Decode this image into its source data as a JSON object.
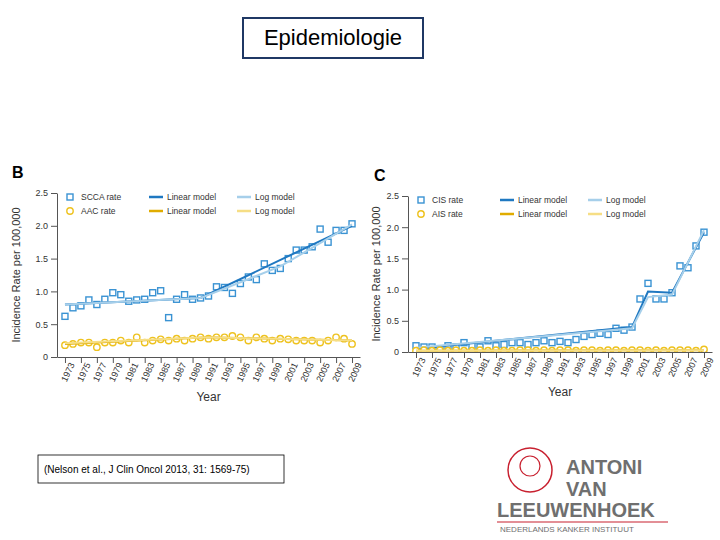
{
  "slide_title": "Epidemiologie",
  "citation": "(Nelson et al., J Clin Oncol 2013, 31: 1569-75)",
  "logo": [
    "ANTONI",
    "VAN",
    "LEEUWENHOEK",
    "NEDERLANDS KANKER INSTITUUT"
  ],
  "chart_data": [
    {
      "type": "scatter",
      "title": "B",
      "x_label": "Year",
      "y_label": "Incidence Rate per 100,000",
      "x": [
        1973,
        1974,
        1975,
        1976,
        1977,
        1978,
        1979,
        1980,
        1981,
        1982,
        1983,
        1984,
        1985,
        1986,
        1987,
        1988,
        1989,
        1990,
        1991,
        1992,
        1993,
        1994,
        1995,
        1996,
        1997,
        1998,
        1999,
        2000,
        2001,
        2002,
        2003,
        2004,
        2005,
        2006,
        2007,
        2008,
        2009
      ],
      "xlim": [
        1972,
        2010
      ],
      "xticks": [
        1973,
        1975,
        1977,
        1979,
        1981,
        1983,
        1985,
        1987,
        1989,
        1991,
        1993,
        1995,
        1997,
        1999,
        2001,
        2003,
        2005,
        2007,
        2009
      ],
      "ylim": [
        0,
        2.5
      ],
      "yticks": [
        0,
        0.5,
        {
          "value": 1,
          "label": "1.0"
        },
        1.5,
        {
          "value": 2,
          "label": "2.0"
        },
        2.5
      ],
      "grid": false,
      "legend": "top",
      "series": [
        {
          "name": "SCCA rate",
          "type": "scatter",
          "marker": "square",
          "color": "#3a93d3",
          "values": [
            0.62,
            0.75,
            0.78,
            0.87,
            0.8,
            0.88,
            0.98,
            0.95,
            0.85,
            0.87,
            0.88,
            0.98,
            1.01,
            0.6,
            0.88,
            0.95,
            0.88,
            0.9,
            0.93,
            1.07,
            1.06,
            0.97,
            1.12,
            1.22,
            1.18,
            1.42,
            1.32,
            1.35,
            1.5,
            1.63,
            1.63,
            1.68,
            1.95,
            1.75,
            1.93,
            1.93,
            2.03
          ]
        },
        {
          "name": "Linear model",
          "type": "line",
          "line_style": "solid",
          "color": "#1f78c1",
          "x": [
            1973,
            1990,
            2009
          ],
          "values": [
            0.8,
            0.9,
            2.0
          ]
        },
        {
          "name": "Log model",
          "type": "line",
          "line_style": "solid",
          "color": "#a6cfea",
          "x": [
            1973,
            1990,
            2000,
            2009
          ],
          "values": [
            0.8,
            0.9,
            1.38,
            2.02
          ]
        },
        {
          "name": "AAC rate",
          "type": "scatter",
          "marker": "circle",
          "color": "#eec21e",
          "values": [
            0.18,
            0.2,
            0.22,
            0.22,
            0.15,
            0.22,
            0.22,
            0.25,
            0.22,
            0.3,
            0.22,
            0.25,
            0.27,
            0.25,
            0.28,
            0.25,
            0.28,
            0.3,
            0.28,
            0.3,
            0.3,
            0.32,
            0.3,
            0.25,
            0.3,
            0.28,
            0.25,
            0.28,
            0.27,
            0.25,
            0.25,
            0.25,
            0.22,
            0.25,
            0.3,
            0.28,
            0.2
          ]
        },
        {
          "name": "Linear model",
          "type": "line",
          "line_style": "solid",
          "color": "#e0ac00",
          "x": [
            1973,
            1991,
            2009
          ],
          "values": [
            0.2,
            0.3,
            0.25
          ]
        },
        {
          "name": "Log model",
          "type": "line",
          "line_style": "solid",
          "color": "#f6de85",
          "x": [
            1973,
            1991,
            2009
          ],
          "values": [
            0.21,
            0.3,
            0.25
          ]
        }
      ]
    },
    {
      "type": "scatter",
      "title": "C",
      "x_label": "Year",
      "y_label": "Incidence Rate per 100,000",
      "x": [
        1973,
        1974,
        1975,
        1976,
        1977,
        1978,
        1979,
        1980,
        1981,
        1982,
        1983,
        1984,
        1985,
        1986,
        1987,
        1988,
        1989,
        1990,
        1991,
        1992,
        1993,
        1994,
        1995,
        1996,
        1997,
        1998,
        1999,
        2000,
        2001,
        2002,
        2003,
        2004,
        2005,
        2006,
        2007,
        2008,
        2009
      ],
      "xlim": [
        1972,
        2010
      ],
      "xticks": [
        1973,
        1975,
        1977,
        1979,
        1981,
        1983,
        1985,
        1987,
        1989,
        1991,
        1993,
        1995,
        1997,
        1999,
        2001,
        2003,
        2005,
        2007,
        2009
      ],
      "ylim": [
        0,
        2.5
      ],
      "yticks": [
        0,
        0.5,
        {
          "value": 1,
          "label": "1.0"
        },
        1.5,
        {
          "value": 2,
          "label": "2.0"
        },
        2.5
      ],
      "grid": false,
      "legend": "top",
      "series": [
        {
          "name": "CIS rate",
          "type": "scatter",
          "marker": "square",
          "color": "#3a93d3",
          "values": [
            0.1,
            0.08,
            0.08,
            0.05,
            0.1,
            0.08,
            0.15,
            0.1,
            0.08,
            0.18,
            0.1,
            0.12,
            0.15,
            0.15,
            0.12,
            0.15,
            0.18,
            0.15,
            0.17,
            0.15,
            0.2,
            0.25,
            0.28,
            0.3,
            0.28,
            0.38,
            0.35,
            0.4,
            0.85,
            1.1,
            0.85,
            0.85,
            0.95,
            1.38,
            1.35,
            1.7,
            1.92
          ]
        },
        {
          "name": "Linear model",
          "type": "line",
          "line_style": "solid",
          "color": "#1f78c1",
          "x": [
            1973,
            2000,
            2002,
            2005,
            2009
          ],
          "values": [
            0.05,
            0.4,
            0.97,
            0.95,
            1.92
          ]
        },
        {
          "name": "Log model",
          "type": "line",
          "line_style": "solid",
          "color": "#a6cfea",
          "x": [
            1973,
            2000,
            2002,
            2005,
            2009
          ],
          "values": [
            0.07,
            0.38,
            0.88,
            0.92,
            1.95
          ]
        },
        {
          "name": "AIS rate",
          "type": "scatter",
          "marker": "circle",
          "color": "#eec21e",
          "values": [
            0.02,
            0.03,
            0.02,
            0.03,
            0.02,
            0.03,
            0.02,
            0.02,
            0.03,
            0.02,
            0.03,
            0.02,
            0.02,
            0.03,
            0.03,
            0.02,
            0.03,
            0.02,
            0.03,
            0.03,
            0.02,
            0.03,
            0.03,
            0.02,
            0.03,
            0.03,
            0.02,
            0.03,
            0.03,
            0.02,
            0.03,
            0.02,
            0.03,
            0.03,
            0.03,
            0.02,
            0.04
          ]
        },
        {
          "name": "Linear model",
          "type": "line",
          "line_style": "solid",
          "color": "#e0ac00",
          "x": [
            1973,
            2009
          ],
          "values": [
            0.02,
            0.03
          ]
        },
        {
          "name": "Log model",
          "type": "line",
          "line_style": "solid",
          "color": "#f6de85",
          "x": [
            1973,
            2009
          ],
          "values": [
            0.02,
            0.03
          ]
        }
      ]
    }
  ]
}
